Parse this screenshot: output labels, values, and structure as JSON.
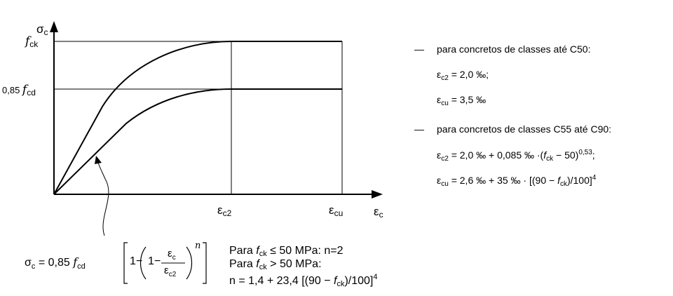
{
  "axes": {
    "y_axis_label": "σ",
    "y_axis_sub": "c",
    "x_axis_label": "ε",
    "x_axis_sub": "c"
  },
  "y_labels": {
    "fck_f": "f",
    "fck_sub": "ck",
    "fcd_prefix": "0,85 ",
    "fcd_f": "f",
    "fcd_sub": "cd"
  },
  "x_labels": {
    "ec2_e": "ε",
    "ec2_sub": "c2",
    "ecu_e": "ε",
    "ecu_sub": "cu"
  },
  "formula": {
    "lhs_sigma": "σ",
    "lhs_sub": "c",
    "eq": "= 0,85 ",
    "f": "f",
    "f_sub": "cd",
    "one": "1",
    "minus": "−",
    "frac_num_e": "ε",
    "frac_num_sub": "c",
    "frac_den_e": "ε",
    "frac_den_sub": "c2",
    "exp_n": "n"
  },
  "conditions": {
    "line1_pre": "Para ",
    "line1_f": "f",
    "line1_sub": "ck",
    "line1_post": " ≤ 50 MPa: n=2",
    "line2_pre": "Para ",
    "line2_f": "f",
    "line2_sub": "ck",
    "line2_post": " > 50 MPa:",
    "line3_pre": "n = 1,4 + 23,4 [(90 − ",
    "line3_f": "f",
    "line3_sub": "ck",
    "line3_post": ")/100]",
    "line3_sup": "4"
  },
  "right_panel": {
    "bullet": "—",
    "group1_title": "para concretos de classes até C50:",
    "g1_l1_e": "ε",
    "g1_l1_sub": "c2",
    "g1_l1_rest": " = 2,0 ‰;",
    "g1_l2_e": "ε",
    "g1_l2_sub": "cu",
    "g1_l2_rest": " = 3,5 ‰",
    "group2_title": "para concretos de classes C55 até C90:",
    "g2_l1_e": "ε",
    "g2_l1_sub": "c2",
    "g2_l1_mid": " = 2,0 ‰ + 0,085 ‰ ·(",
    "g2_l1_f": "f",
    "g2_l1_fsub": "ck",
    "g2_l1_end": " − 50)",
    "g2_l1_sup": "0,53",
    "g2_l1_tail": ";",
    "g2_l2_e": "ε",
    "g2_l2_sub": "cu",
    "g2_l2_mid": " = 2,6 ‰ + 35 ‰ · [(90 − ",
    "g2_l2_f": "f",
    "g2_l2_fsub": "ck",
    "g2_l2_end": ")/100]",
    "g2_l2_sup": "4"
  }
}
